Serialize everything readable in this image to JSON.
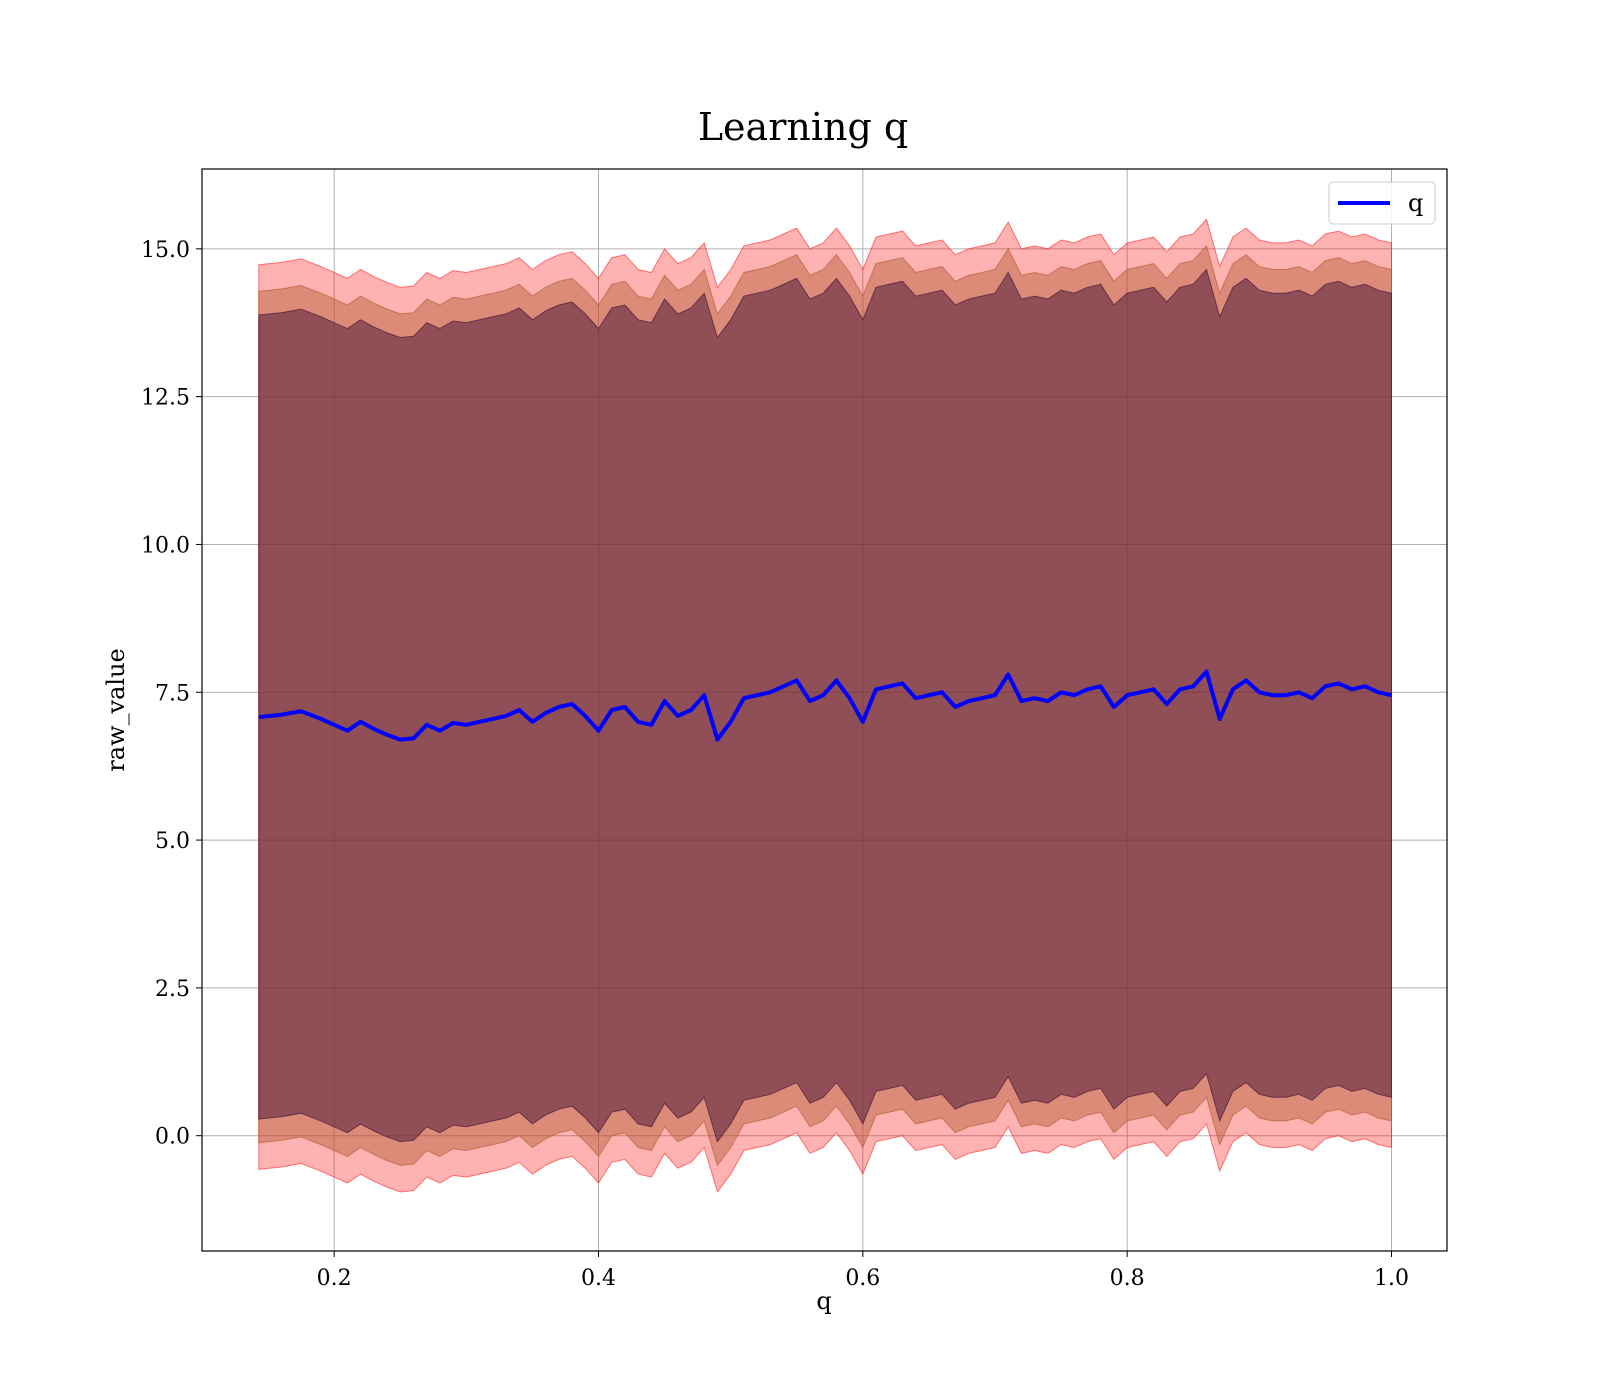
{
  "chart_data": {
    "type": "line",
    "title": "Learning q",
    "xlabel": "q",
    "ylabel": "raw_value",
    "xlim": [
      0.1,
      1.042
    ],
    "ylim": [
      -1.95,
      16.35
    ],
    "grid": true,
    "legend_placement": "top-right",
    "x_ticks": [
      0.2,
      0.4,
      0.6,
      0.8,
      1.0
    ],
    "x_tick_labels": [
      "0.2",
      "0.4",
      "0.6",
      "0.8",
      "1.0"
    ],
    "y_ticks": [
      0.0,
      2.5,
      5.0,
      7.5,
      10.0,
      12.5,
      15.0
    ],
    "y_tick_labels": [
      "0.0",
      "2.5",
      "5.0",
      "7.5",
      "10.0",
      "12.5",
      "15.0"
    ],
    "series": [
      {
        "name": "q",
        "color": "#0000ff",
        "x": [
          0.143,
          0.16,
          0.175,
          0.19,
          0.2,
          0.21,
          0.22,
          0.23,
          0.24,
          0.25,
          0.26,
          0.27,
          0.28,
          0.29,
          0.3,
          0.31,
          0.32,
          0.33,
          0.34,
          0.35,
          0.36,
          0.37,
          0.38,
          0.39,
          0.4,
          0.41,
          0.42,
          0.43,
          0.44,
          0.45,
          0.46,
          0.47,
          0.48,
          0.49,
          0.5,
          0.51,
          0.52,
          0.53,
          0.54,
          0.55,
          0.56,
          0.57,
          0.58,
          0.59,
          0.6,
          0.61,
          0.62,
          0.63,
          0.64,
          0.65,
          0.66,
          0.67,
          0.68,
          0.69,
          0.7,
          0.71,
          0.72,
          0.73,
          0.74,
          0.75,
          0.76,
          0.77,
          0.78,
          0.79,
          0.8,
          0.81,
          0.82,
          0.83,
          0.84,
          0.85,
          0.86,
          0.87,
          0.88,
          0.89,
          0.9,
          0.91,
          0.92,
          0.93,
          0.94,
          0.95,
          0.96,
          0.97,
          0.98,
          0.99,
          1.0
        ],
        "mean": [
          7.08,
          7.12,
          7.18,
          7.05,
          6.95,
          6.85,
          7.0,
          6.88,
          6.78,
          6.7,
          6.72,
          6.95,
          6.85,
          6.98,
          6.95,
          7.0,
          7.05,
          7.1,
          7.2,
          7.0,
          7.15,
          7.25,
          7.3,
          7.1,
          6.85,
          7.2,
          7.25,
          7.0,
          6.95,
          7.35,
          7.1,
          7.2,
          7.45,
          6.7,
          7.0,
          7.4,
          7.45,
          7.5,
          7.6,
          7.7,
          7.35,
          7.45,
          7.7,
          7.4,
          7.0,
          7.55,
          7.6,
          7.65,
          7.4,
          7.45,
          7.5,
          7.25,
          7.35,
          7.4,
          7.45,
          7.8,
          7.35,
          7.4,
          7.35,
          7.5,
          7.45,
          7.55,
          7.6,
          7.25,
          7.45,
          7.5,
          7.55,
          7.3,
          7.55,
          7.6,
          7.85,
          7.05,
          7.55,
          7.7,
          7.5,
          7.45,
          7.45,
          7.5,
          7.4,
          7.6,
          7.65,
          7.55,
          7.6,
          7.5,
          7.45
        ]
      }
    ],
    "bands": [
      {
        "sigma": 2,
        "color": "#ff0000",
        "opacity": 0.3
      },
      {
        "sigma": 1.5,
        "color": "#b45a32",
        "opacity": 0.45
      },
      {
        "sigma": 1,
        "color": "#501e3c",
        "opacity": 0.55
      }
    ],
    "band_halfwidths": [
      7.65,
      7.2,
      6.8
    ]
  }
}
